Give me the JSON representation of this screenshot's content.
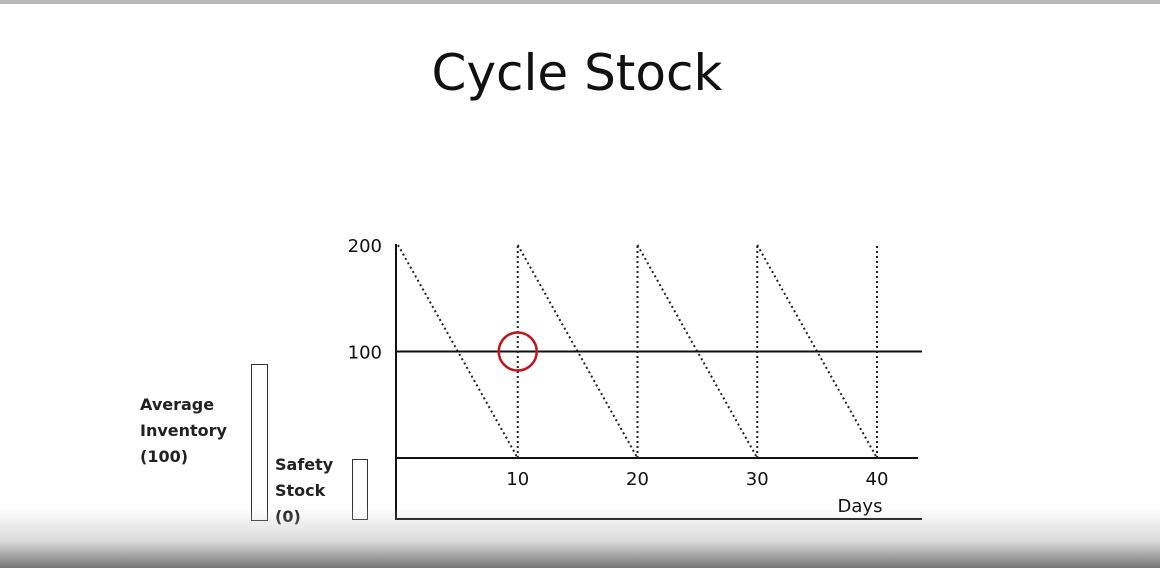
{
  "slide": {
    "title": "Cycle Stock"
  },
  "side_labels": {
    "average_inventory": "Average\nInventory\n(100)",
    "safety_stock": "Safety\nStock\n(0)"
  },
  "chart_data": {
    "type": "line",
    "title": "",
    "xlabel": "Days",
    "ylabel": "",
    "xlim": [
      0,
      40
    ],
    "ylim": [
      0,
      200
    ],
    "x_ticks": [
      10,
      20,
      30,
      40
    ],
    "y_ticks": [
      100,
      200
    ],
    "series": [
      {
        "style": "dotted",
        "x": [
          0,
          10,
          10,
          20,
          20,
          30,
          30,
          40,
          40
        ],
        "y": [
          200,
          0,
          200,
          0,
          200,
          0,
          200,
          0,
          200
        ]
      }
    ],
    "reference_lines": [
      {
        "y": 100,
        "style": "solid"
      }
    ],
    "annotations": [
      {
        "shape": "circle",
        "x": 10,
        "y": 100,
        "color": "#c0161b"
      }
    ]
  }
}
